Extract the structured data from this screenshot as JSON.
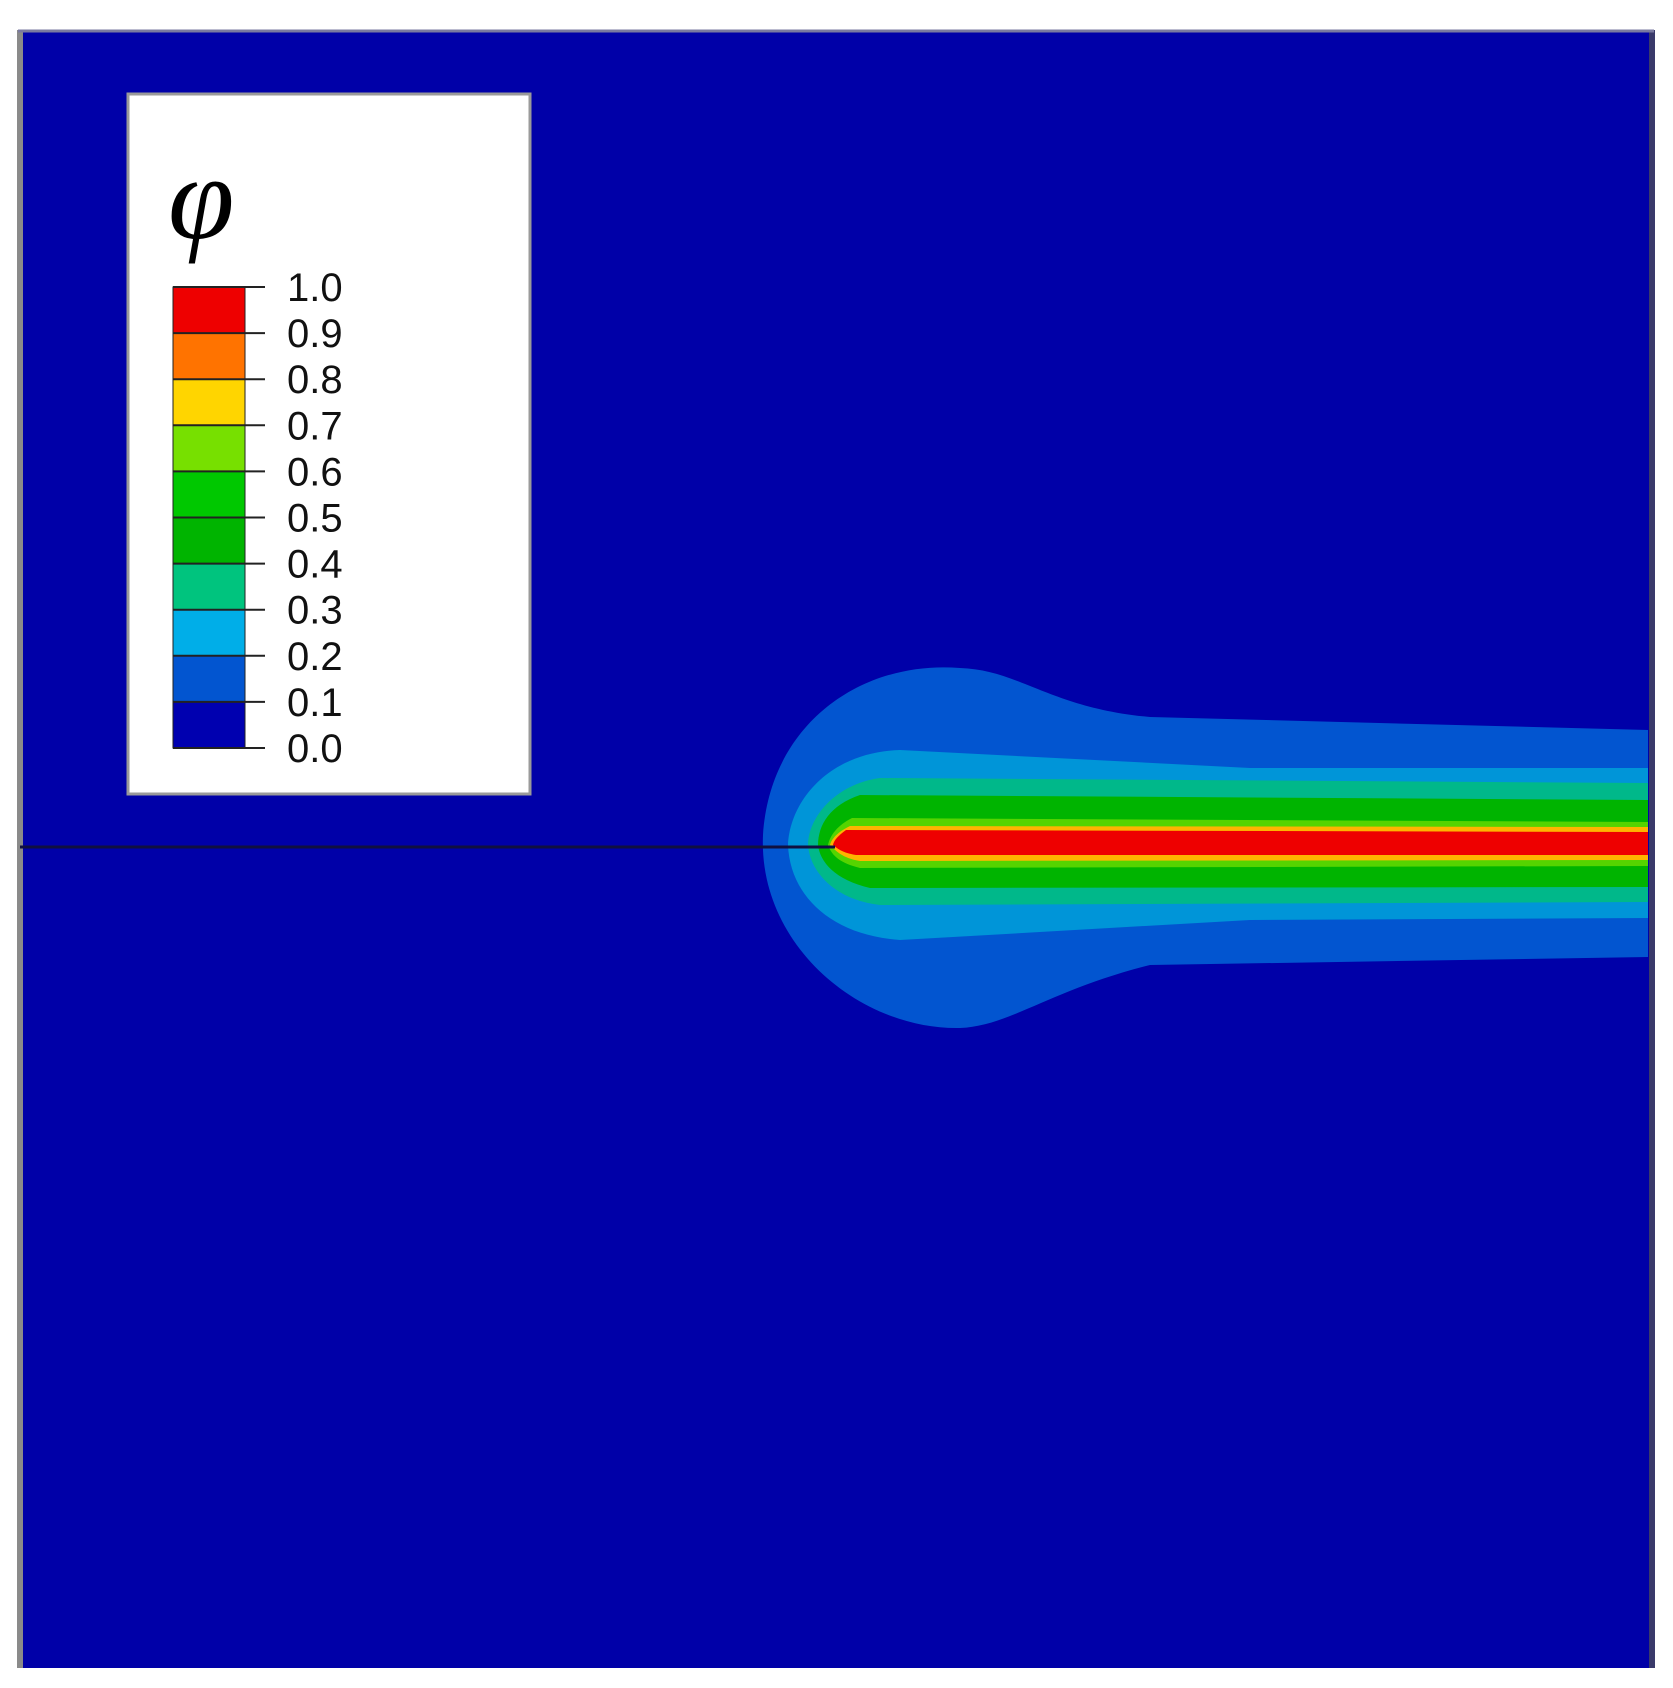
{
  "chart_data": {
    "type": "heatmap",
    "variable": "φ",
    "colorbar": {
      "title": "φ",
      "ticks": [
        "1.0",
        "0.9",
        "0.8",
        "0.7",
        "0.6",
        "0.5",
        "0.4",
        "0.3",
        "0.2",
        "0.1",
        "0.0"
      ],
      "levels": [
        {
          "from": 0.9,
          "to": 1.0,
          "color": "#ee0000"
        },
        {
          "from": 0.8,
          "to": 0.9,
          "color": "#ff7300"
        },
        {
          "from": 0.7,
          "to": 0.8,
          "color": "#ffd500"
        },
        {
          "from": 0.6,
          "to": 0.7,
          "color": "#77e000"
        },
        {
          "from": 0.5,
          "to": 0.6,
          "color": "#00c800"
        },
        {
          "from": 0.4,
          "to": 0.5,
          "color": "#00b400"
        },
        {
          "from": 0.3,
          "to": 0.4,
          "color": "#00c47e"
        },
        {
          "from": 0.2,
          "to": 0.3,
          "color": "#00aee8"
        },
        {
          "from": 0.1,
          "to": 0.2,
          "color": "#0255d0"
        },
        {
          "from": 0.0,
          "to": 0.1,
          "color": "#0000b0"
        }
      ],
      "placement": "top-left"
    },
    "background_color": "#0000a8",
    "crack": {
      "description_visible": false,
      "tip_x": 0.47,
      "direction": "right"
    }
  }
}
